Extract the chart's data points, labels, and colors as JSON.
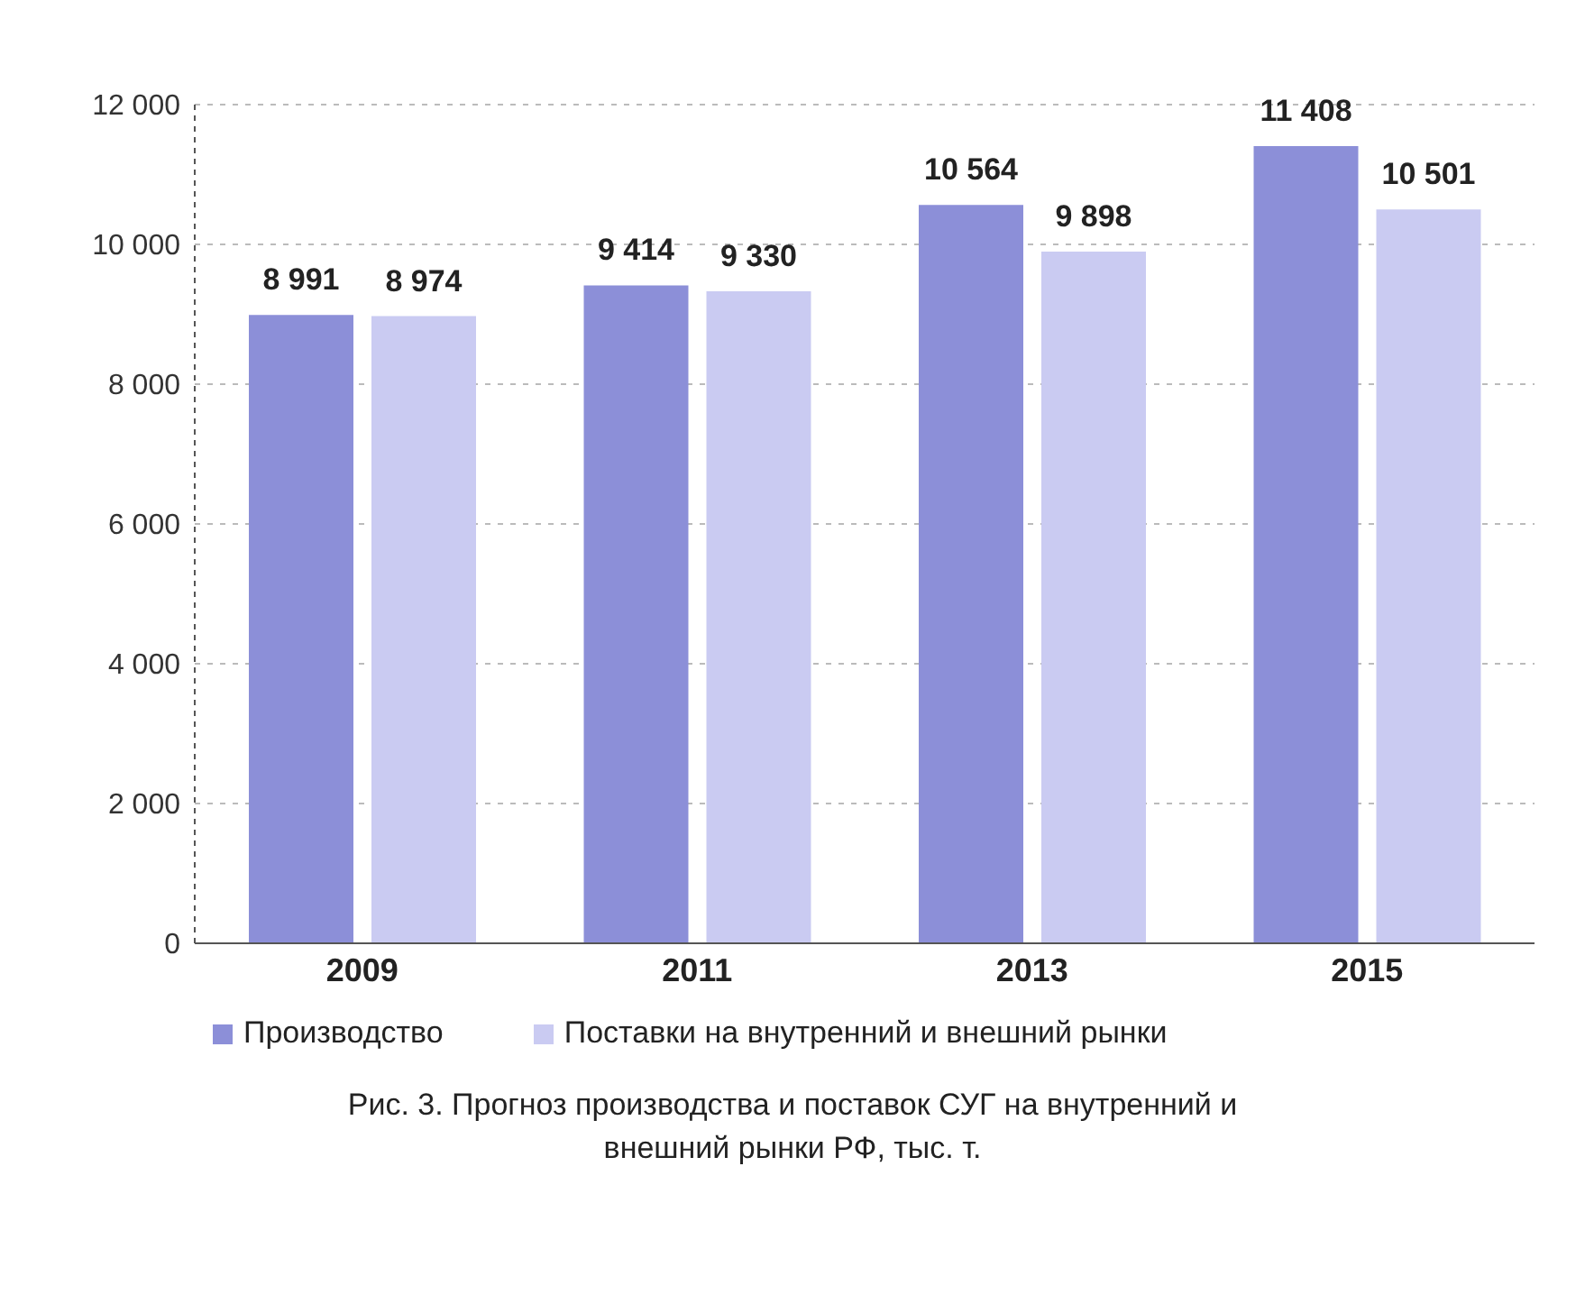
{
  "chart_data": {
    "type": "bar",
    "title": "Рис. 3. Прогноз производства и поставок СУГ на внутренний и внешний рынки РФ, тыс. т.",
    "categories": [
      "2009",
      "2011",
      "2013",
      "2015"
    ],
    "series": [
      {
        "name": "Производство",
        "color": "#8c8fd8",
        "values": [
          8991,
          9414,
          10564,
          11408
        ],
        "value_labels": [
          "8 991",
          "9 414",
          "10 564",
          "11 408"
        ]
      },
      {
        "name": "Поставки на внутренний и внешний рынки",
        "color": "#cacbf2",
        "values": [
          8974,
          9330,
          9898,
          10501
        ],
        "value_labels": [
          "8 974",
          "9 330",
          "9 898",
          "10 501"
        ]
      }
    ],
    "ylim": [
      0,
      12000
    ],
    "yticks": [
      {
        "value": 0,
        "label": "0"
      },
      {
        "value": 2000,
        "label": "2 000"
      },
      {
        "value": 4000,
        "label": "4 000"
      },
      {
        "value": 6000,
        "label": "6 000"
      },
      {
        "value": 8000,
        "label": "8 000"
      },
      {
        "value": 10000,
        "label": "10 000"
      },
      {
        "value": 12000,
        "label": "12 000"
      }
    ],
    "grid": "y",
    "legend": "bottom left"
  }
}
